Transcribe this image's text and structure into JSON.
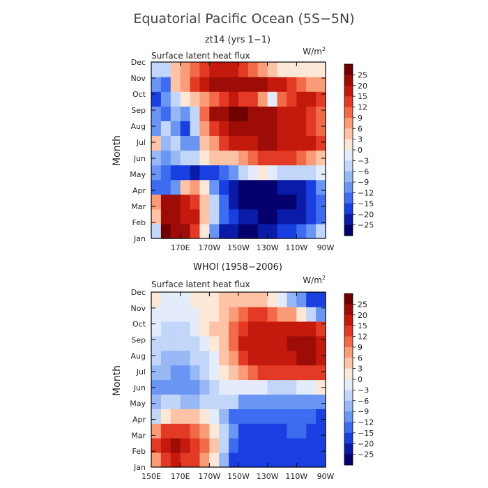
{
  "figure": {
    "title": "Equatorial Pacific Ocean (5S−5N)"
  },
  "chart_data": [
    {
      "type": "heatmap",
      "title": "zt14 (yrs 1−1)",
      "subtitle": "Surface latent heat flux",
      "units": "W/m",
      "units_sup": "2",
      "ylabel": "Month",
      "x_ticks": [
        "150E",
        "170E",
        "170W",
        "150W",
        "130W",
        "110W",
        "90W"
      ],
      "x_tick_labels_shown": [
        false,
        true,
        true,
        true,
        true,
        true,
        true
      ],
      "xlim": [
        150,
        270
      ],
      "y_ticks": [
        "Jan",
        "Feb",
        "Mar",
        "Apr",
        "May",
        "Jun",
        "Jul",
        "Aug",
        "Sep",
        "Oct",
        "Nov",
        "Dec"
      ],
      "values": [
        [
          -4,
          25,
          22,
          20,
          14,
          2,
          -12,
          -22,
          -25,
          -26,
          -26,
          -24,
          -22,
          -20,
          -18,
          -15,
          -10,
          -6
        ],
        [
          5,
          22,
          22,
          18,
          15,
          5,
          -6,
          -15,
          -20,
          -23,
          -25,
          -26,
          -26,
          -25,
          -24,
          -22,
          -20,
          -15
        ],
        [
          8,
          22,
          24,
          18,
          12,
          4,
          -5,
          -14,
          -22,
          -26,
          -28,
          -28,
          -28,
          -28,
          -27,
          -25,
          -20,
          -14
        ],
        [
          -15,
          -14,
          -12,
          4,
          6,
          0,
          -10,
          -20,
          -25,
          -27,
          -27,
          -27,
          -26,
          -25,
          -24,
          -22,
          -18,
          -12
        ],
        [
          -10,
          -14,
          -18,
          -20,
          -22,
          -20,
          -20,
          -15,
          -10,
          -4,
          -2,
          0,
          -2,
          -4,
          -6,
          -5,
          -4,
          -2
        ],
        [
          -8,
          -12,
          -8,
          -6,
          -5,
          0,
          3,
          5,
          5,
          8,
          10,
          12,
          12,
          12,
          12,
          10,
          8,
          5
        ],
        [
          4,
          -8,
          -4,
          -10,
          -10,
          5,
          8,
          12,
          15,
          18,
          19,
          20,
          20,
          18,
          18,
          16,
          15,
          12
        ],
        [
          -12,
          -6,
          -10,
          -18,
          -6,
          6,
          12,
          18,
          21,
          22,
          22,
          23,
          21,
          18,
          16,
          15,
          13,
          10
        ],
        [
          -12,
          -14,
          -8,
          -10,
          -4,
          9,
          20,
          24,
          25,
          25,
          24,
          22,
          20,
          18,
          16,
          15,
          12,
          10
        ],
        [
          -18,
          -12,
          -4,
          0,
          5,
          6,
          10,
          14,
          15,
          14,
          12,
          6,
          -3,
          10,
          12,
          15,
          16,
          14
        ],
        [
          -10,
          -15,
          4,
          6,
          14,
          18,
          22,
          22,
          20,
          20,
          20,
          20,
          18,
          16,
          12,
          10,
          8,
          6
        ],
        [
          -6,
          -4,
          4,
          6,
          10,
          14,
          15,
          16,
          16,
          14,
          10,
          6,
          4,
          2,
          0,
          0,
          0,
          0
        ]
      ]
    },
    {
      "type": "heatmap",
      "title": "WHOI (1958−2006)",
      "subtitle": "Surface latent heat flux",
      "units": "W/m",
      "units_sup": "2",
      "ylabel": "Month",
      "x_ticks": [
        "150E",
        "170E",
        "170W",
        "150W",
        "130W",
        "110W",
        "90W"
      ],
      "x_tick_labels_shown": [
        true,
        true,
        true,
        true,
        true,
        true,
        true
      ],
      "xlim": [
        150,
        270
      ],
      "y_ticks": [
        "Jan",
        "Feb",
        "Mar",
        "Apr",
        "May",
        "Jun",
        "Jul",
        "Aug",
        "Sep",
        "Oct",
        "Nov",
        "Dec"
      ],
      "values": [
        [
          8,
          14,
          16,
          14,
          12,
          8,
          2,
          -8,
          -16,
          -20,
          -20,
          -20,
          -18,
          -18,
          -16,
          -16,
          -18,
          -20
        ],
        [
          12,
          18,
          20,
          18,
          14,
          10,
          4,
          -6,
          -14,
          -18,
          -18,
          -18,
          -17,
          -16,
          -16,
          -16,
          -18,
          -20
        ],
        [
          6,
          12,
          14,
          12,
          10,
          6,
          2,
          -4,
          -12,
          -16,
          -17,
          -17,
          -16,
          -16,
          -15,
          -15,
          -16,
          -18
        ],
        [
          -4,
          2,
          4,
          4,
          4,
          2,
          -2,
          -8,
          -13,
          -15,
          -15,
          -15,
          -14,
          -14,
          -14,
          -14,
          -15,
          -16
        ],
        [
          -8,
          -6,
          -6,
          -8,
          -8,
          -6,
          -4,
          -4,
          -6,
          -10,
          -12,
          -12,
          -11,
          -11,
          -10,
          -10,
          -10,
          -10
        ],
        [
          -10,
          -10,
          -12,
          -12,
          -10,
          -8,
          -4,
          -2,
          -2,
          -2,
          -3,
          -3,
          -4,
          -4,
          -4,
          -3,
          -2,
          0
        ],
        [
          -8,
          -9,
          -10,
          -12,
          -8,
          -6,
          -2,
          1,
          3,
          8,
          11,
          12,
          12,
          12,
          13,
          14,
          14,
          12
        ],
        [
          -6,
          -8,
          -8,
          -8,
          -6,
          -4,
          -1,
          3,
          8,
          14,
          16,
          16,
          16,
          16,
          18,
          20,
          20,
          16
        ],
        [
          -4,
          -6,
          -6,
          -6,
          -4,
          -2,
          2,
          5,
          10,
          15,
          18,
          18,
          17,
          18,
          20,
          22,
          24,
          18
        ],
        [
          -2,
          -4,
          -4,
          -4,
          -2,
          0,
          3,
          5,
          10,
          14,
          16,
          16,
          15,
          15,
          17,
          18,
          18,
          14
        ],
        [
          -1,
          -2,
          -2,
          -2,
          -1,
          0,
          2,
          4,
          8,
          10,
          12,
          12,
          10,
          8,
          6,
          2,
          -4,
          -10
        ],
        [
          0,
          -1,
          -1,
          -1,
          0,
          1,
          2,
          3,
          5,
          5,
          5,
          4,
          2,
          -2,
          -8,
          -12,
          -16,
          -20
        ]
      ]
    }
  ],
  "colorbar": {
    "labels": [
      "25",
      "20",
      "15",
      "12",
      "9",
      "6",
      "3",
      "0",
      "−3",
      "−6",
      "−9",
      "−12",
      "−15",
      "−20",
      "−25"
    ],
    "levels": [
      -25,
      -20,
      -15,
      -12,
      -9,
      -6,
      -3,
      0,
      3,
      6,
      9,
      12,
      15,
      20,
      25
    ],
    "colors": [
      "#05006e",
      "#0a1ba8",
      "#1a3fe0",
      "#3d6cf0",
      "#6a95f2",
      "#97b8f5",
      "#c1d6f8",
      "#e4ecfb",
      "#fde7d7",
      "#fcc3a7",
      "#fa9c77",
      "#f26a47",
      "#e33a25",
      "#c41a0d",
      "#9d0c06",
      "#700000"
    ]
  }
}
